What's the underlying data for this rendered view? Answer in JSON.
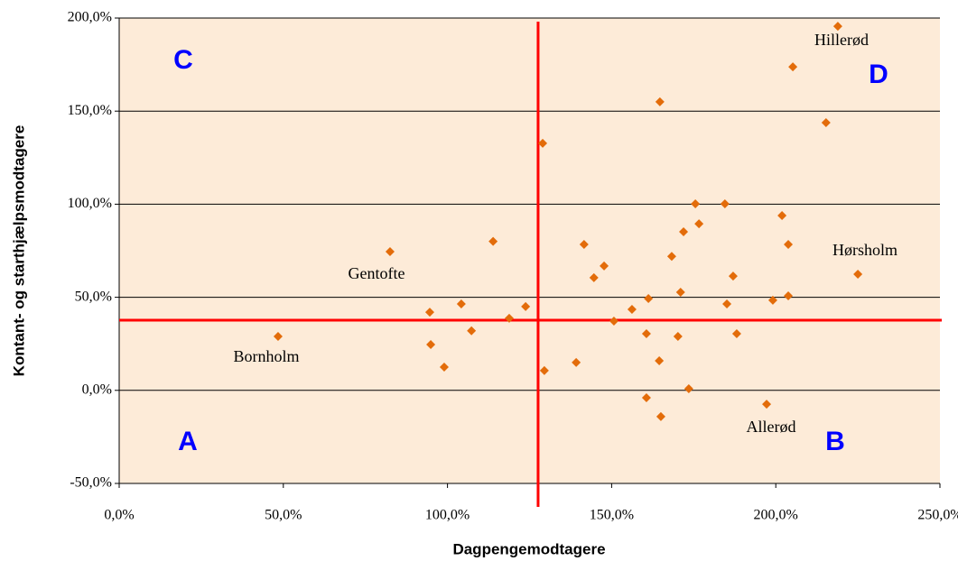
{
  "chart_data": {
    "type": "scatter",
    "x_label": "Dagpengemodtagere",
    "y_label": "Kontant- og starthjælpsmodtagere",
    "color": "#e36c0a",
    "x": [
      48.4,
      82.5,
      94.6,
      94.9,
      99,
      104.2,
      107.3,
      113.9,
      118.8,
      123.8,
      129.5,
      129,
      139.2,
      141.6,
      144.6,
      147.7,
      150.7,
      156.2,
      160.6,
      160.6,
      161.2,
      164.7,
      164.5,
      165,
      168.3,
      170.2,
      171,
      171.9,
      173.5,
      175.5,
      176.6,
      184.5,
      185.1,
      187,
      188.1,
      197.2,
      199.1,
      201.9,
      203.8,
      203.8,
      205.2,
      215.3,
      218.9,
      225
    ],
    "values": [
      29,
      74.5,
      42,
      24.6,
      12.5,
      46.4,
      32,
      80,
      38.7,
      45,
      10.6,
      132.7,
      15,
      78.4,
      60.5,
      66.8,
      37.2,
      43.5,
      30.4,
      -4,
      49.3,
      155,
      15.9,
      -14.1,
      72,
      29,
      52.7,
      85.2,
      0.9,
      100.2,
      89.5,
      100.2,
      46.4,
      61.4,
      30.4,
      -7.4,
      48.4,
      93.9,
      50.8,
      78.4,
      173.8,
      143.8,
      195.6,
      62.4
    ],
    "xlim": [
      0,
      250
    ],
    "ylim": [
      -50,
      200
    ],
    "xticks": [
      {
        "value": 0,
        "label": "0,0%"
      },
      {
        "value": 50,
        "label": "50,0%"
      },
      {
        "value": 100,
        "label": "100,0%"
      },
      {
        "value": 150,
        "label": "150,0%"
      },
      {
        "value": 200,
        "label": "200,0%"
      },
      {
        "value": 250,
        "label": "250,0%"
      }
    ],
    "yticks": [
      {
        "value": -50,
        "label": "-50,0%"
      },
      {
        "value": 0,
        "label": "0,0%"
      },
      {
        "value": 50,
        "label": "50,0%"
      },
      {
        "value": 100,
        "label": "100,0%"
      },
      {
        "value": 150,
        "label": "150,0%"
      },
      {
        "value": 200,
        "label": "200,0%"
      }
    ],
    "grid": true,
    "reference_lines": {
      "x": 127.6,
      "y": 37.7,
      "color": "#ff0000"
    },
    "annotations": [
      "Bornholm",
      "Gentofte",
      "Hillerød",
      "Hørsholm",
      "Allerød"
    ],
    "quadrants": [
      "C",
      "D",
      "A",
      "B"
    ]
  }
}
